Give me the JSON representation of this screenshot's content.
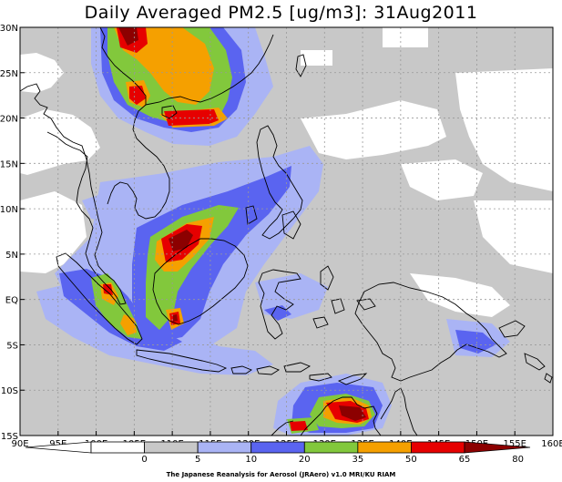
{
  "title": "Daily Averaged PM2.5 [ug/m3]: 31Aug2011",
  "credit": "The Japanese Reanalysis for Aerosol (JRAero) v1.0 MRI/KU RIAM",
  "map": {
    "lon_range": [
      90,
      160
    ],
    "lat_range": [
      -15,
      30
    ],
    "lon_ticks": [
      {
        "value": 90,
        "label": "90E"
      },
      {
        "value": 95,
        "label": "95E"
      },
      {
        "value": 100,
        "label": "100E"
      },
      {
        "value": 105,
        "label": "105E"
      },
      {
        "value": 110,
        "label": "110E"
      },
      {
        "value": 115,
        "label": "115E"
      },
      {
        "value": 120,
        "label": "120E"
      },
      {
        "value": 125,
        "label": "125E"
      },
      {
        "value": 130,
        "label": "130E"
      },
      {
        "value": 135,
        "label": "135E"
      },
      {
        "value": 140,
        "label": "140E"
      },
      {
        "value": 145,
        "label": "145E"
      },
      {
        "value": 150,
        "label": "150E"
      },
      {
        "value": 155,
        "label": "155E"
      },
      {
        "value": 160,
        "label": "160E"
      }
    ],
    "lat_ticks": [
      {
        "value": 30,
        "label": "30N"
      },
      {
        "value": 25,
        "label": "25N"
      },
      {
        "value": 20,
        "label": "20N"
      },
      {
        "value": 15,
        "label": "15N"
      },
      {
        "value": 10,
        "label": "10N"
      },
      {
        "value": 5,
        "label": "5N"
      },
      {
        "value": 0,
        "label": "EQ"
      },
      {
        "value": -5,
        "label": "5S"
      },
      {
        "value": -10,
        "label": "10S"
      },
      {
        "value": -15,
        "label": "15S"
      }
    ],
    "gridlines": "dotted grey every 5 degrees"
  },
  "colorbar": {
    "levels": [
      0,
      5,
      10,
      20,
      35,
      50,
      65,
      80
    ],
    "colors": [
      "#ffffff",
      "#ffffff",
      "#c8c8c8",
      "#aab4f5",
      "#5a64f0",
      "#82c83c",
      "#f5a000",
      "#e60000",
      "#8c0000"
    ]
  },
  "colors": {
    "c5": "#c8c8c8",
    "c10": "#aab4f5",
    "c20": "#5a64f0",
    "c35": "#82c83c",
    "c50": "#f5a000",
    "c65": "#e60000",
    "c80": "#8c0000"
  }
}
